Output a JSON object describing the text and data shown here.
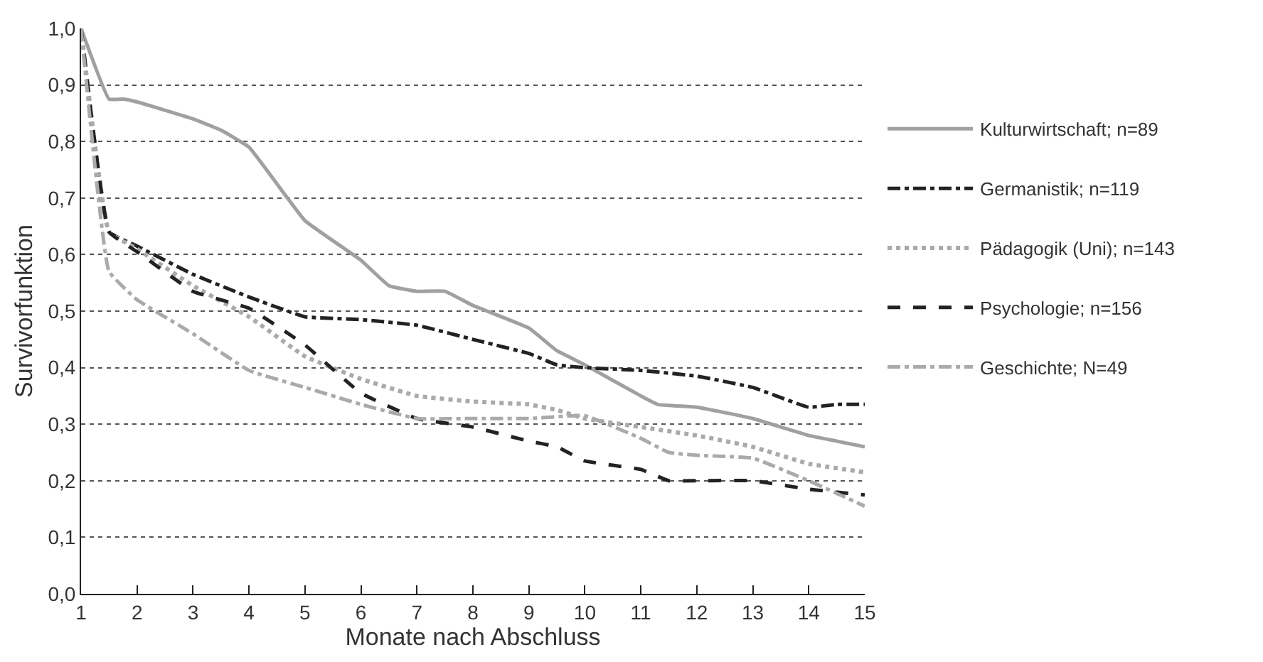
{
  "chart_data": {
    "type": "line",
    "xlabel": "Monate nach Abschluss",
    "ylabel": "Survivorfunktion",
    "xlim": [
      1,
      15
    ],
    "xticks": [
      1,
      2,
      3,
      4,
      5,
      6,
      7,
      8,
      9,
      10,
      11,
      12,
      13,
      14,
      15
    ],
    "ylim": [
      0,
      1
    ],
    "yticks": [
      {
        "value": 0,
        "label": "0,0"
      },
      {
        "value": 0.1,
        "label": "0,1"
      },
      {
        "value": 0.2,
        "label": "0,2"
      },
      {
        "value": 0.3,
        "label": "0,3"
      },
      {
        "value": 0.4,
        "label": "0,4"
      },
      {
        "value": 0.5,
        "label": "0,5"
      },
      {
        "value": 0.6,
        "label": "0,6"
      },
      {
        "value": 0.7,
        "label": "0,7"
      },
      {
        "value": 0.8,
        "label": "0,8"
      },
      {
        "value": 0.9,
        "label": "0,9"
      },
      {
        "value": 1,
        "label": "1,0"
      }
    ],
    "grid": "y",
    "legend": "right",
    "marker": "none",
    "series": [
      {
        "name": "Kulturwirtschaft; n=89",
        "color": "#a0a0a0",
        "line_style": "solid",
        "x": [
          1,
          1.5,
          1.75,
          2,
          3,
          3.5,
          4,
          5,
          6,
          6.5,
          7,
          7.5,
          8,
          9,
          9.5,
          10,
          11,
          11.3,
          12,
          13,
          14,
          14.5,
          15
        ],
        "values": [
          1.0,
          0.875,
          0.875,
          0.87,
          0.84,
          0.82,
          0.79,
          0.66,
          0.59,
          0.545,
          0.535,
          0.535,
          0.51,
          0.47,
          0.43,
          0.405,
          0.35,
          0.335,
          0.33,
          0.31,
          0.28,
          0.27,
          0.26
        ]
      },
      {
        "name": "Germanistik; n=119",
        "color": "#222222",
        "line_style": "dashdot",
        "x": [
          1,
          1.5,
          2,
          3,
          4,
          5,
          6,
          7,
          8,
          9,
          9.5,
          10,
          11,
          12,
          13,
          14,
          14.5,
          15
        ],
        "values": [
          1.0,
          0.64,
          0.615,
          0.565,
          0.525,
          0.49,
          0.485,
          0.475,
          0.45,
          0.425,
          0.405,
          0.4,
          0.395,
          0.385,
          0.365,
          0.33,
          0.335,
          0.335
        ]
      },
      {
        "name": "Pädagogik (Uni); n=143",
        "color": "#aaaaaa",
        "line_style": "dotted",
        "x": [
          1,
          1.5,
          2,
          3,
          4,
          5,
          6,
          7,
          8,
          9,
          9.5,
          10,
          11,
          12,
          13,
          14,
          15
        ],
        "values": [
          1.0,
          0.64,
          0.61,
          0.545,
          0.49,
          0.42,
          0.38,
          0.35,
          0.34,
          0.335,
          0.325,
          0.31,
          0.295,
          0.28,
          0.26,
          0.23,
          0.215
        ]
      },
      {
        "name": "Psychologie; n=156",
        "color": "#222222",
        "line_style": "dashed",
        "x": [
          1,
          1.5,
          2,
          3,
          4,
          5,
          6,
          7,
          8,
          9,
          9.5,
          10,
          11,
          11.5,
          12,
          13,
          14,
          15
        ],
        "values": [
          1.0,
          0.64,
          0.605,
          0.535,
          0.505,
          0.44,
          0.355,
          0.31,
          0.295,
          0.27,
          0.26,
          0.235,
          0.22,
          0.2,
          0.2,
          0.2,
          0.185,
          0.175
        ]
      },
      {
        "name": "Geschichte; N=49",
        "color": "#aaaaaa",
        "line_style": "dashdot",
        "x": [
          1,
          1.5,
          2,
          3,
          4,
          5,
          6,
          7,
          8,
          9,
          10,
          11,
          11.5,
          12,
          13,
          14,
          15
        ],
        "values": [
          1.0,
          0.57,
          0.52,
          0.46,
          0.395,
          0.365,
          0.335,
          0.31,
          0.31,
          0.31,
          0.315,
          0.275,
          0.25,
          0.245,
          0.24,
          0.2,
          0.155
        ]
      }
    ]
  }
}
